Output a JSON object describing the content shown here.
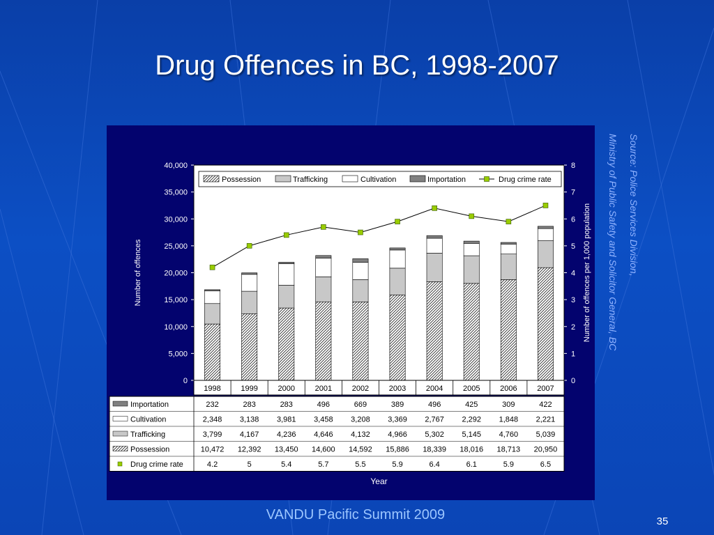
{
  "slide": {
    "title": "Drug Offences in BC, 1998-2007",
    "source_line1": "Source: Police Services Division,",
    "source_line2": "Ministry of Public Safety and Solicitor General, BC",
    "footer": "VANDU Pacific Summit 2009",
    "page_number": "35"
  },
  "colors": {
    "background": "#0b45b6",
    "panel": "#03036e",
    "plot_area": "#ffffff",
    "trafficking": "#c8c8c8",
    "cultivation": "#ffffff",
    "importation": "#808080",
    "rate_marker": "#99cc00"
  },
  "chart_data": {
    "type": "bar",
    "stacked": true,
    "categories": [
      "1998",
      "1999",
      "2000",
      "2001",
      "2002",
      "2003",
      "2004",
      "2005",
      "2006",
      "2007"
    ],
    "xlabel": "Year",
    "ylabel": "Number of offences",
    "y2label": "Number of offences per 1,000 population",
    "ylim": [
      0,
      40000
    ],
    "y2lim": [
      0,
      8
    ],
    "yticks": [
      "0",
      "5,000",
      "10,000",
      "15,000",
      "20,000",
      "25,000",
      "30,000",
      "35,000",
      "40,000"
    ],
    "y2ticks": [
      "0",
      "1",
      "2",
      "3",
      "4",
      "5",
      "6",
      "7",
      "8"
    ],
    "legend_position": "top",
    "grid": false,
    "series": [
      {
        "name": "Possession",
        "type": "bar",
        "pattern": "diagonal-hatch",
        "values": [
          10472,
          12392,
          13450,
          14600,
          14592,
          15886,
          18339,
          18016,
          18713,
          20950
        ],
        "labels": [
          "10,472",
          "12,392",
          "13,450",
          "14,600",
          "14,592",
          "15,886",
          "18,339",
          "18,016",
          "18,713",
          "20,950"
        ]
      },
      {
        "name": "Trafficking",
        "type": "bar",
        "color": "#c8c8c8",
        "values": [
          3799,
          4167,
          4236,
          4646,
          4132,
          4966,
          5302,
          5145,
          4760,
          5039
        ],
        "labels": [
          "3,799",
          "4,167",
          "4,236",
          "4,646",
          "4,132",
          "4,966",
          "5,302",
          "5,145",
          "4,760",
          "5,039"
        ]
      },
      {
        "name": "Cultivation",
        "type": "bar",
        "color": "#ffffff",
        "values": [
          2348,
          3138,
          3981,
          3458,
          3208,
          3369,
          2767,
          2292,
          1848,
          2221
        ],
        "labels": [
          "2,348",
          "3,138",
          "3,981",
          "3,458",
          "3,208",
          "3,369",
          "2,767",
          "2,292",
          "1,848",
          "2,221"
        ]
      },
      {
        "name": "Importation",
        "type": "bar",
        "color": "#808080",
        "values": [
          232,
          283,
          283,
          496,
          669,
          389,
          496,
          425,
          309,
          422
        ],
        "labels": [
          "232",
          "283",
          "283",
          "496",
          "669",
          "389",
          "496",
          "425",
          "309",
          "422"
        ]
      },
      {
        "name": "Drug crime rate",
        "type": "line",
        "axis": "y2",
        "color": "#99cc00",
        "values": [
          4.2,
          5,
          5.4,
          5.7,
          5.5,
          5.9,
          6.4,
          6.1,
          5.9,
          6.5
        ],
        "labels": [
          "4.2",
          "5",
          "5.4",
          "5.7",
          "5.5",
          "5.9",
          "6.4",
          "6.1",
          "5.9",
          "6.5"
        ]
      }
    ],
    "table_row_order": [
      "Importation",
      "Cultivation",
      "Trafficking",
      "Possession",
      "Drug crime rate"
    ]
  }
}
